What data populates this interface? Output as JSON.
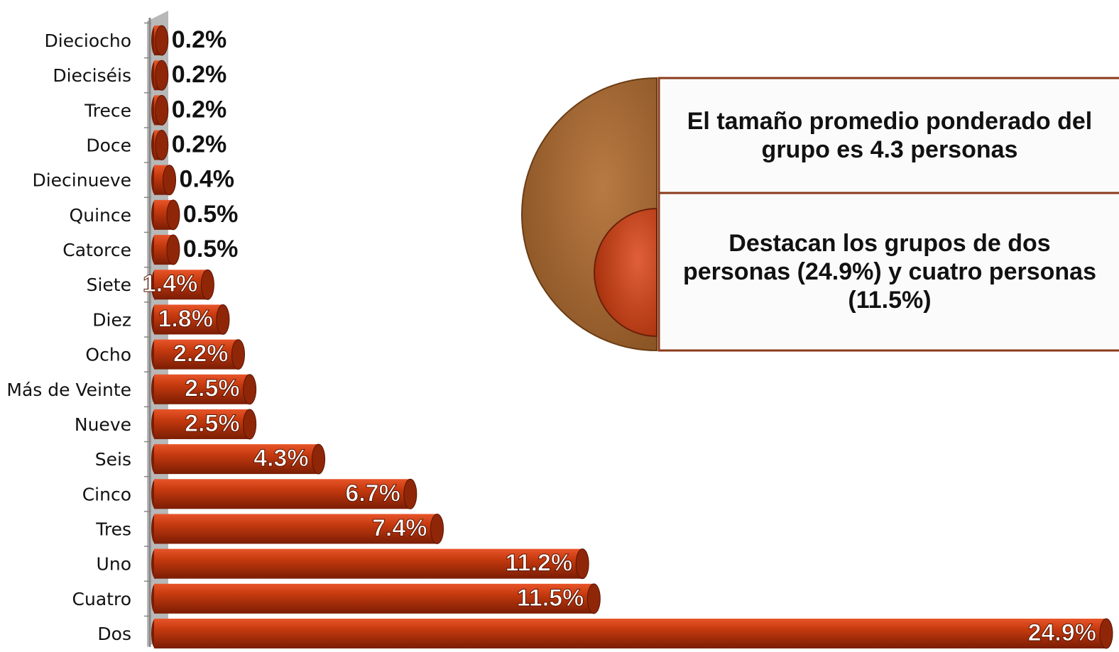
{
  "chart_data": {
    "type": "bar",
    "orientation": "horizontal",
    "categories": [
      "Dieciocho",
      "Dieciséis",
      "Trece",
      "Doce",
      "Diecinueve",
      "Quince",
      "Catorce",
      "Siete",
      "Diez",
      "Ocho",
      "Más de Veinte",
      "Nueve",
      "Seis",
      "Cinco",
      "Tres",
      "Uno",
      "Cuatro",
      "Dos"
    ],
    "values": [
      0.2,
      0.2,
      0.2,
      0.2,
      0.4,
      0.5,
      0.5,
      1.4,
      1.8,
      2.2,
      2.5,
      2.5,
      4.3,
      6.7,
      7.4,
      11.2,
      11.5,
      24.9
    ],
    "value_labels": [
      "0.2%",
      "0.2%",
      "0.2%",
      "0.2%",
      "0.4%",
      "0.5%",
      "0.5%",
      "1.4%",
      "1.8%",
      "2.2%",
      "2.5%",
      "2.5%",
      "4.3%",
      "6.7%",
      "7.4%",
      "11.2%",
      "11.5%",
      "24.9%"
    ],
    "color": "#c0390f",
    "annotations": [
      "El tamaño promedio ponderado del grupo es 4.3 personas",
      "Destacan  los grupos de dos personas (24.9%) y cuatro personas (11.5%)"
    ]
  }
}
